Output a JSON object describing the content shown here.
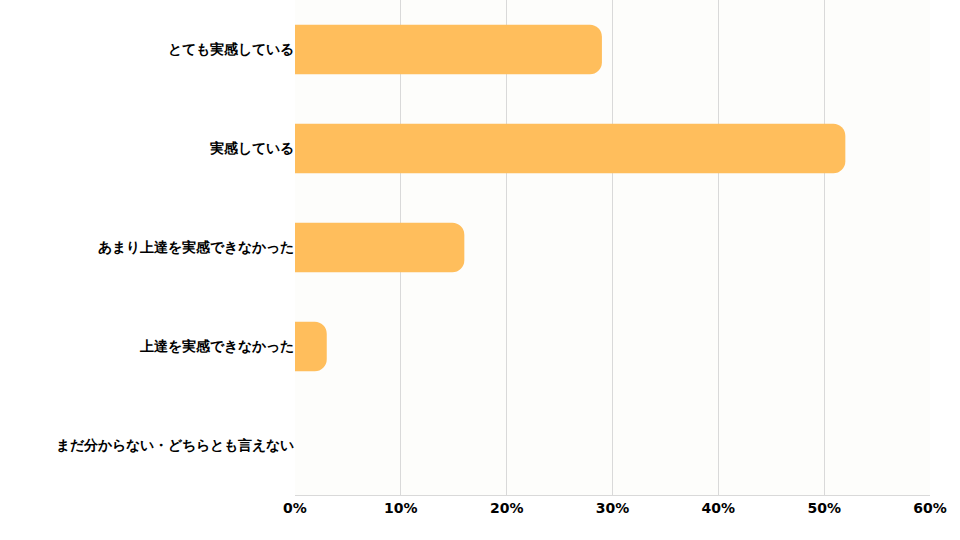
{
  "chart_data": {
    "type": "bar",
    "orientation": "horizontal",
    "categories": [
      "とても実感している",
      "実感している",
      "あまり上達を実感できなかった",
      "上達を実感できなかった",
      "まだ分からない・どちらとも言えない"
    ],
    "values": [
      29,
      52,
      16,
      3,
      0
    ],
    "color": "#ffbe5c",
    "xlim": [
      0,
      60
    ],
    "xticks": [
      {
        "value": 0,
        "label": "0%"
      },
      {
        "value": 10,
        "label": "10%"
      },
      {
        "value": 20,
        "label": "20%"
      },
      {
        "value": 30,
        "label": "30%"
      },
      {
        "value": 40,
        "label": "40%"
      },
      {
        "value": 50,
        "label": "50%"
      },
      {
        "value": 60,
        "label": "60%"
      }
    ],
    "grid": true
  }
}
